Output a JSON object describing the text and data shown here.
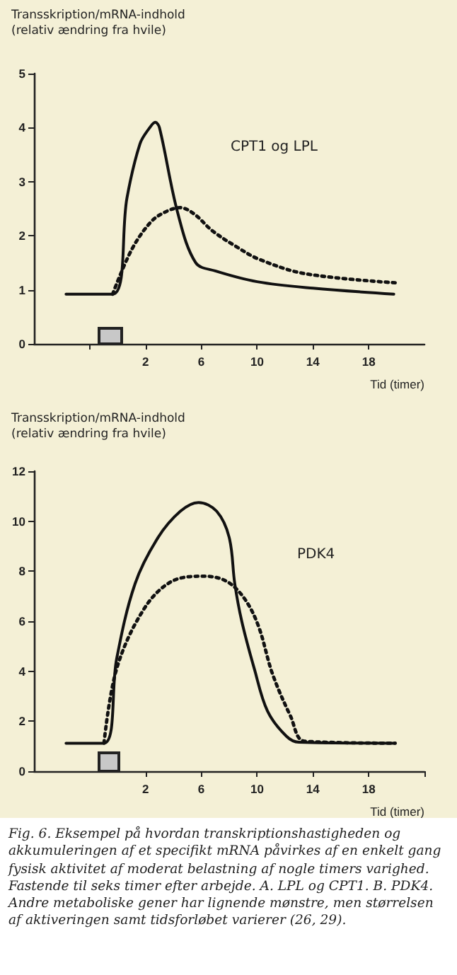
{
  "chart_data": [
    {
      "type": "line",
      "title": "CPT1 og LPL",
      "ylabel": "Transskription/mRNA-indhold (relativ ændring fra hvile)",
      "xlabel": "Tid (timer)",
      "xlim": [
        -6,
        22
      ],
      "xticks": [
        {
          "value": -2,
          "label": null
        },
        2,
        6,
        10,
        14,
        18
      ],
      "ylim": [
        0,
        5
      ],
      "yticks": [
        0,
        1,
        2,
        3,
        4,
        5
      ],
      "grid": false,
      "marker": "none",
      "series": [
        {
          "color": "#111111",
          "line_style": "solid",
          "x": [
            -3.7,
            -0.36,
            0.67,
            1.6,
            2.3,
            2.7,
            3.0,
            4.3,
            5.6,
            7,
            10,
            14,
            19.8
          ],
          "values": [
            0.92,
            0.92,
            2.7,
            3.7,
            4.0,
            4.1,
            4.0,
            2.43,
            1.5,
            1.35,
            1.15,
            1.03,
            0.92
          ]
        },
        {
          "color": "#111111",
          "line_style": "dotted",
          "x": [
            -0.36,
            1.0,
            2.4,
            3.5,
            4.5,
            5.5,
            6.8,
            8.5,
            10.1,
            13.4,
            19.9
          ],
          "values": [
            0.92,
            1.74,
            2.26,
            2.45,
            2.52,
            2.4,
            2.09,
            1.8,
            1.57,
            1.3,
            1.13
          ]
        }
      ]
    },
    {
      "type": "line",
      "title": "PDK4",
      "ylabel": "Transskription/mRNA-indhold (relativ ændring fra hvile)",
      "xlabel": "Tid (timer)",
      "xlim": [
        -6,
        22
      ],
      "xticks": [
        2,
        6,
        10,
        14,
        18,
        {
          "value": 22,
          "label": null
        }
      ],
      "ylim": [
        0,
        12
      ],
      "yticks": [
        0,
        2,
        4,
        6,
        8,
        10,
        12
      ],
      "grid": false,
      "marker": "none",
      "annotations": [
        "Fig. 6. Eksempel på hvordan transkriptionshastigheden og akkumuleringen af et specifikt mRNA påvirkes af en enkelt gang fysisk aktivitet af moderat belastning af nogle timers varighed. Fastende til seks timer efter arbejde. A. LPL og CPT1. B. PDK4. Andre metaboliske gener har lignende mønstre, men størrelsen af aktiveringen samt tidsforløbet varierer (26, 29)."
      ],
      "series": [
        {
          "color": "#111111",
          "line_style": "solid",
          "x": [
            -3.7,
            -0.98,
            -0.07,
            1.25,
            2.9,
            4.5,
            5.8,
            7.1,
            8.0,
            8.4,
            8.9,
            9.8,
            10.75,
            12.1,
            13.0,
            19.9
          ],
          "values": [
            1.12,
            1.12,
            4.5,
            7.5,
            9.35,
            10.4,
            10.75,
            10.4,
            9.35,
            7.5,
            6.0,
            4.1,
            2.4,
            1.4,
            1.16,
            1.12
          ]
        },
        {
          "color": "#111111",
          "line_style": "dotted",
          "x": [
            -0.98,
            -0.07,
            1.9,
            3.9,
            6.2,
            7.8,
            9.1,
            10.1,
            11.1,
            12.4,
            13.4,
            19.9
          ],
          "values": [
            1.12,
            4.1,
            6.5,
            7.6,
            7.8,
            7.6,
            6.9,
            5.8,
            3.9,
            2.2,
            1.2,
            1.12
          ]
        }
      ]
    }
  ]
}
